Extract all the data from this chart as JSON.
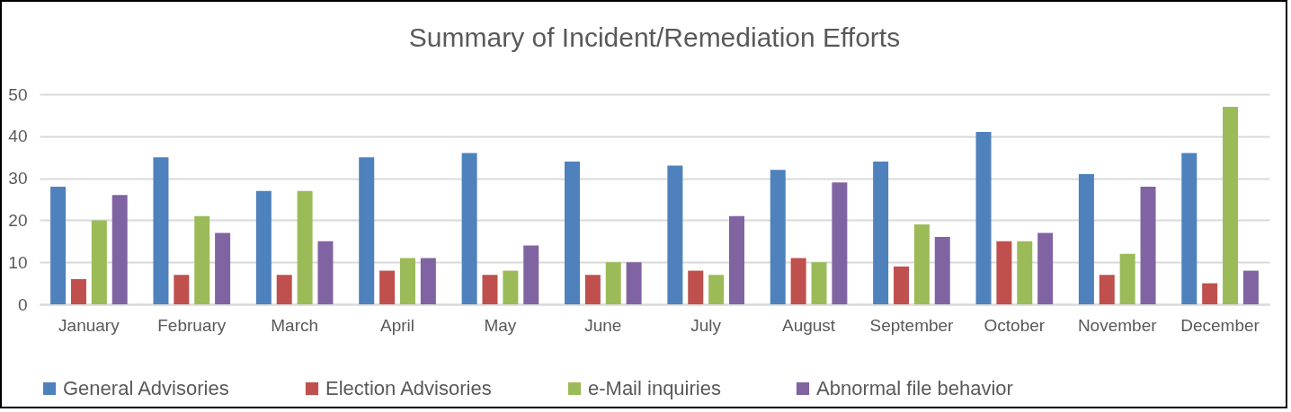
{
  "chart_data": {
    "type": "bar",
    "title": "Summary of Incident/Remediation Efforts",
    "categories": [
      "January",
      "February",
      "March",
      "April",
      "May",
      "June",
      "July",
      "August",
      "September",
      "October",
      "November",
      "December"
    ],
    "series": [
      {
        "name": "General Advisories",
        "color": "#4f81bd",
        "values": [
          28,
          35,
          27,
          35,
          36,
          34,
          33,
          32,
          34,
          41,
          31,
          36
        ]
      },
      {
        "name": "Election Advisories",
        "color": "#c0504d",
        "values": [
          6,
          7,
          7,
          8,
          7,
          7,
          8,
          11,
          9,
          15,
          7,
          5
        ]
      },
      {
        "name": "e-Mail inquiries",
        "color": "#9bbb59",
        "values": [
          20,
          21,
          27,
          11,
          8,
          10,
          7,
          10,
          19,
          15,
          12,
          47
        ]
      },
      {
        "name": "Abnormal file behavior",
        "color": "#8064a2",
        "values": [
          26,
          17,
          15,
          11,
          14,
          10,
          21,
          29,
          16,
          17,
          28,
          8
        ]
      }
    ],
    "ylim": [
      0,
      50
    ],
    "yticks": [
      0,
      10,
      20,
      30,
      40,
      50
    ],
    "grid": true,
    "legend": "bottom"
  }
}
